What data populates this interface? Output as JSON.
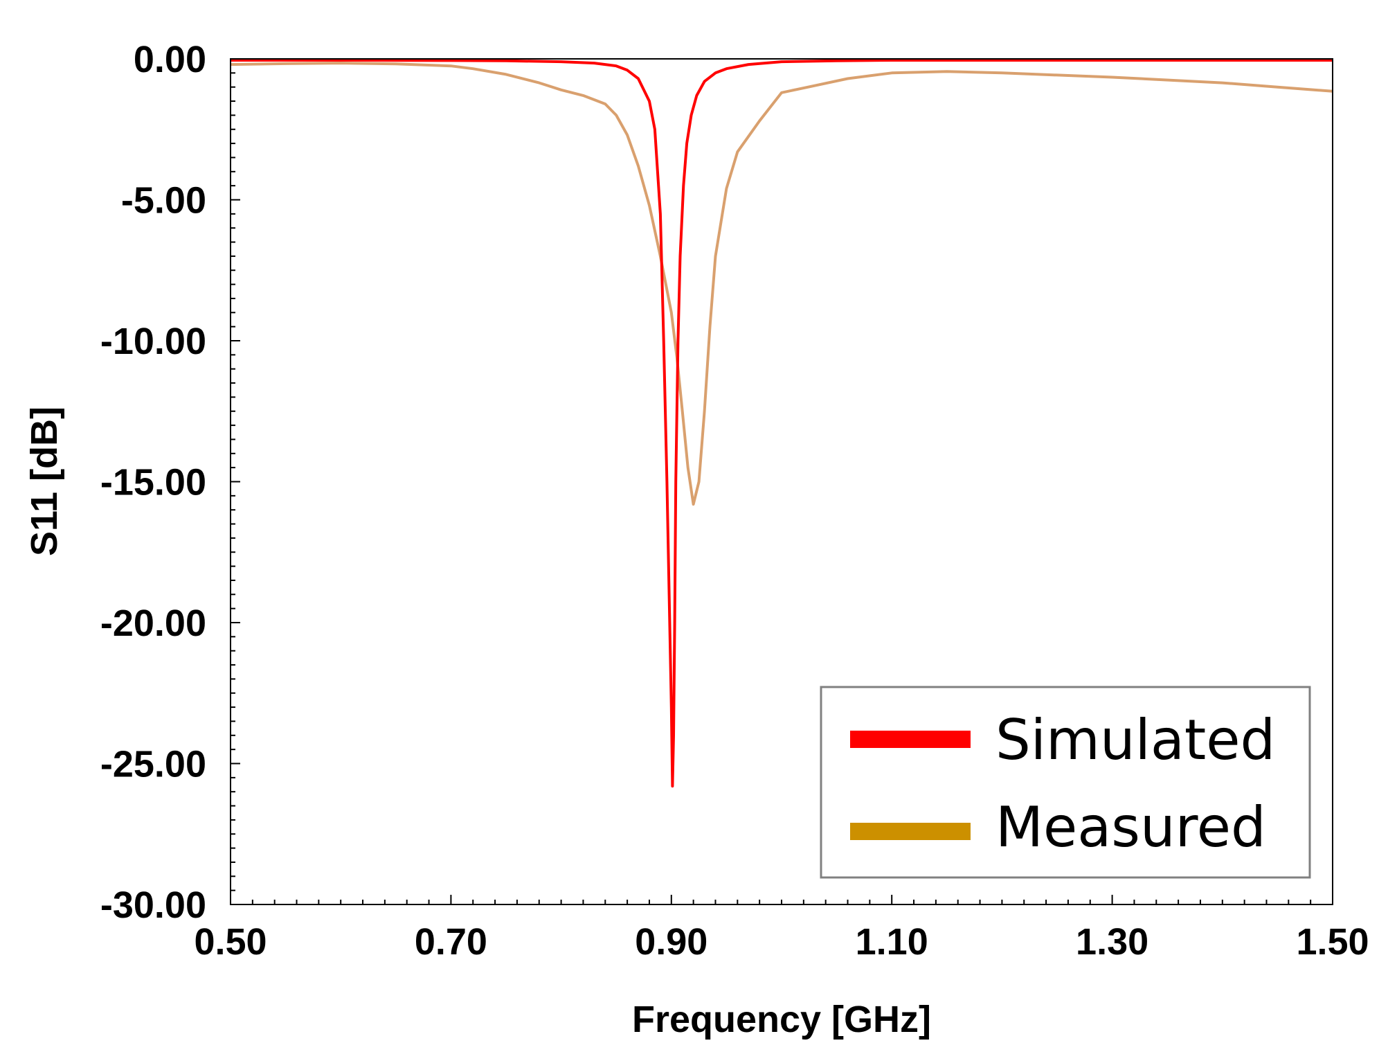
{
  "chart_data": {
    "type": "line",
    "title": "",
    "xlabel": "Frequency [GHz]",
    "ylabel": "S11 [dB]",
    "xlim": [
      0.5,
      1.5
    ],
    "ylim": [
      -30,
      0
    ],
    "x_ticks": [
      "0.50",
      "0.70",
      "0.90",
      "1.10",
      "1.30",
      "1.50"
    ],
    "x_tick_values": [
      0.5,
      0.7,
      0.9,
      1.1,
      1.3,
      1.5
    ],
    "y_ticks": [
      "0.00",
      "-5.00",
      "-10.00",
      "-15.00",
      "-20.00",
      "-25.00",
      "-30.00"
    ],
    "y_tick_values": [
      0,
      -5,
      -10,
      -15,
      -20,
      -25,
      -30
    ],
    "reference_line": 0,
    "grid": false,
    "legend_position": "bottom-right",
    "series": [
      {
        "name": "Simulated",
        "color": "#ff0000",
        "legend_color": "#ff0000",
        "x": [
          0.5,
          0.6,
          0.7,
          0.75,
          0.8,
          0.83,
          0.85,
          0.86,
          0.87,
          0.88,
          0.885,
          0.89,
          0.893,
          0.896,
          0.898,
          0.9,
          0.901,
          0.902,
          0.903,
          0.904,
          0.906,
          0.908,
          0.911,
          0.914,
          0.918,
          0.923,
          0.93,
          0.94,
          0.95,
          0.97,
          1.0,
          1.05,
          1.1,
          1.3,
          1.5
        ],
        "values": [
          -0.05,
          -0.05,
          -0.06,
          -0.07,
          -0.1,
          -0.15,
          -0.25,
          -0.4,
          -0.7,
          -1.5,
          -2.5,
          -5.5,
          -10.0,
          -15.0,
          -19.0,
          -23.0,
          -25.8,
          -24.0,
          -20.0,
          -15.0,
          -10.0,
          -7.0,
          -4.5,
          -3.0,
          -2.0,
          -1.3,
          -0.8,
          -0.5,
          -0.35,
          -0.2,
          -0.1,
          -0.07,
          -0.05,
          -0.05,
          -0.05
        ]
      },
      {
        "name": "Measured",
        "color": "#d9a06e",
        "legend_color": "#cc9000",
        "x": [
          0.5,
          0.55,
          0.6,
          0.65,
          0.7,
          0.72,
          0.75,
          0.78,
          0.8,
          0.82,
          0.84,
          0.85,
          0.86,
          0.87,
          0.88,
          0.89,
          0.9,
          0.905,
          0.91,
          0.915,
          0.92,
          0.925,
          0.93,
          0.935,
          0.94,
          0.95,
          0.96,
          0.98,
          1.0,
          1.03,
          1.06,
          1.1,
          1.15,
          1.2,
          1.3,
          1.4,
          1.45,
          1.5
        ],
        "values": [
          -0.2,
          -0.17,
          -0.15,
          -0.18,
          -0.25,
          -0.35,
          -0.55,
          -0.85,
          -1.1,
          -1.3,
          -1.6,
          -2.0,
          -2.7,
          -3.8,
          -5.2,
          -7.0,
          -9.0,
          -10.6,
          -12.5,
          -14.5,
          -15.8,
          -15.0,
          -12.5,
          -9.5,
          -7.0,
          -4.6,
          -3.3,
          -2.2,
          -1.2,
          -0.95,
          -0.7,
          -0.5,
          -0.45,
          -0.5,
          -0.65,
          -0.85,
          -1.0,
          -1.15
        ]
      }
    ]
  }
}
